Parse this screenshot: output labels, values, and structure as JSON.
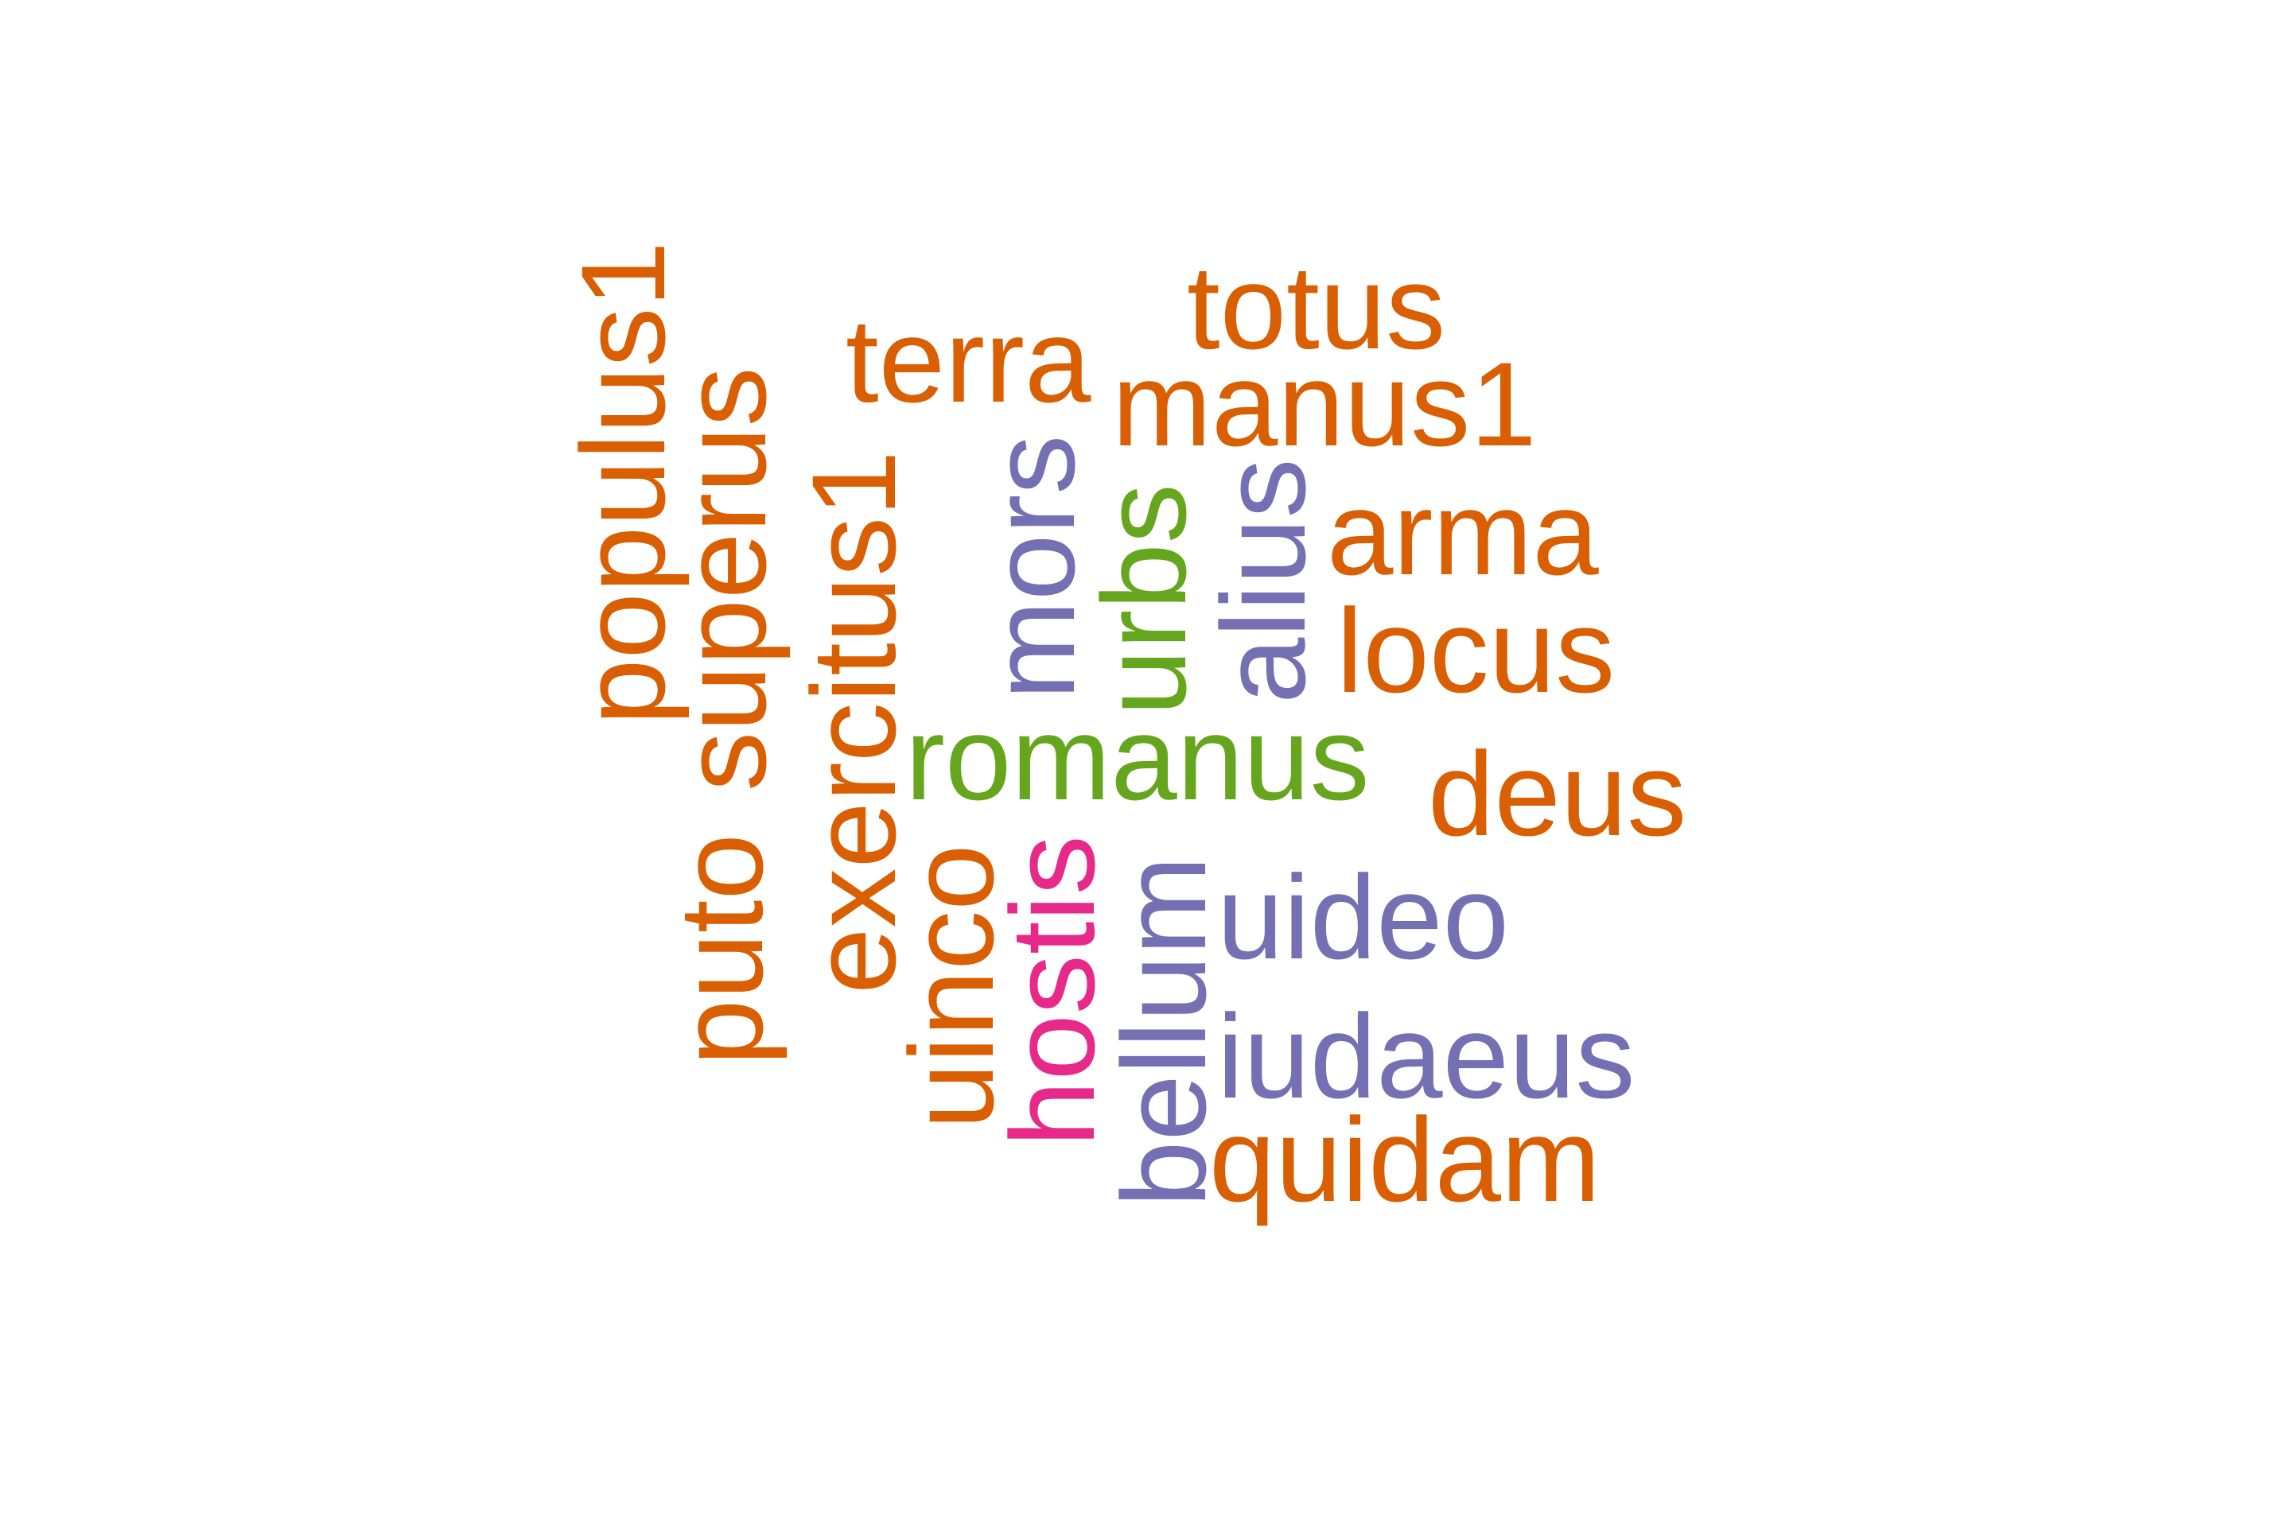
{
  "palette": {
    "orange": "#d95f02",
    "green": "#66a61e",
    "purple": "#7570b3",
    "magenta": "#e7298a"
  },
  "words": [
    {
      "text": "totus",
      "color": "orange",
      "orientation": "horizontal"
    },
    {
      "text": "terra",
      "color": "orange",
      "orientation": "horizontal"
    },
    {
      "text": "manus1",
      "color": "orange",
      "orientation": "horizontal"
    },
    {
      "text": "arma",
      "color": "orange",
      "orientation": "horizontal"
    },
    {
      "text": "locus",
      "color": "orange",
      "orientation": "horizontal"
    },
    {
      "text": "romanus",
      "color": "green",
      "orientation": "horizontal"
    },
    {
      "text": "deus",
      "color": "orange",
      "orientation": "horizontal"
    },
    {
      "text": "uideo",
      "color": "purple",
      "orientation": "horizontal"
    },
    {
      "text": "iudaeus",
      "color": "purple",
      "orientation": "horizontal"
    },
    {
      "text": "quidam",
      "color": "orange",
      "orientation": "horizontal"
    },
    {
      "text": "populus1",
      "color": "orange",
      "orientation": "vertical"
    },
    {
      "text": "superus",
      "color": "orange",
      "orientation": "vertical"
    },
    {
      "text": "puto",
      "color": "orange",
      "orientation": "vertical"
    },
    {
      "text": "exercitus1",
      "color": "orange",
      "orientation": "vertical"
    },
    {
      "text": "uinco",
      "color": "orange",
      "orientation": "vertical"
    },
    {
      "text": "hostis",
      "color": "magenta",
      "orientation": "vertical"
    },
    {
      "text": "mors",
      "color": "purple",
      "orientation": "vertical"
    },
    {
      "text": "urbs",
      "color": "green",
      "orientation": "vertical"
    },
    {
      "text": "alius",
      "color": "purple",
      "orientation": "vertical"
    },
    {
      "text": "bellum",
      "color": "purple",
      "orientation": "vertical"
    }
  ]
}
